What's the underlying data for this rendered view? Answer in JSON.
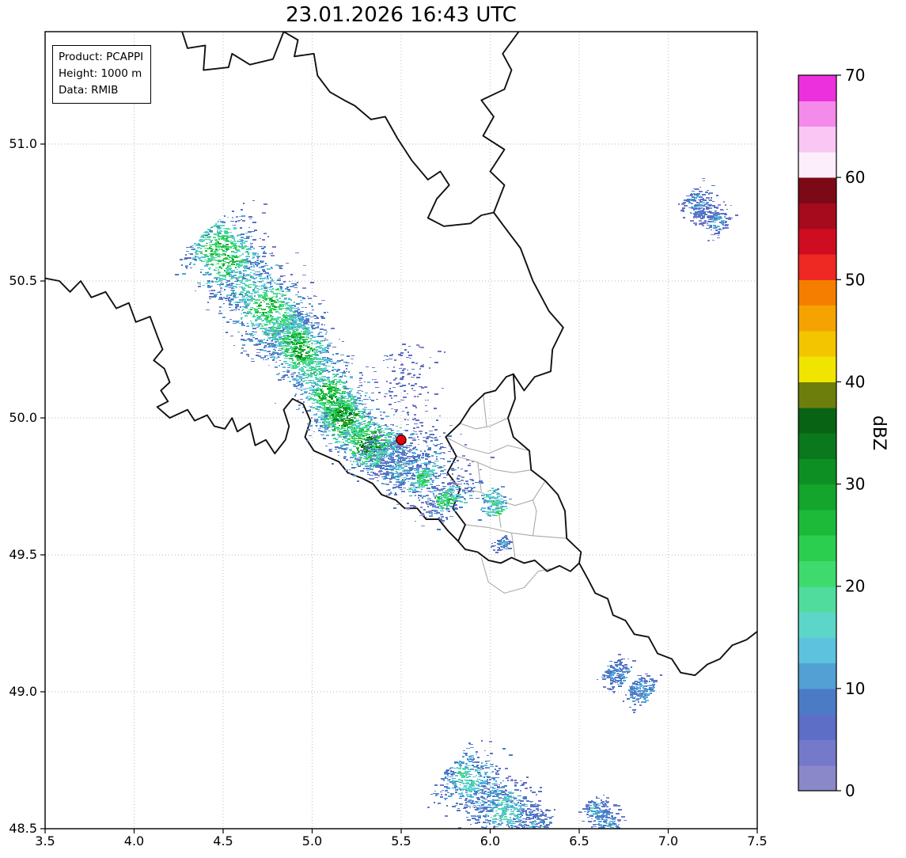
{
  "title": "23.01.2026 16:43 UTC",
  "info_box": {
    "lines": [
      "Product: PCAPPI",
      "Height: 1000 m",
      "Data: RMIB"
    ]
  },
  "axes": {
    "xlim": [
      3.5,
      7.5
    ],
    "ylim": [
      48.5,
      51.41
    ],
    "xticks": [
      "3.5",
      "4.0",
      "4.5",
      "5.0",
      "5.5",
      "6.0",
      "6.5",
      "7.0",
      "7.5"
    ],
    "yticks": [
      "48.5",
      "49.0",
      "49.5",
      "50.0",
      "50.5",
      "51.0"
    ],
    "grid": "dotted"
  },
  "colorbar": {
    "label": "dBZ",
    "vmin": 0,
    "vmax": 70,
    "step": 2.5,
    "ticks": [
      0,
      10,
      20,
      30,
      40,
      50,
      60,
      70
    ],
    "colors": [
      "#8a88c9",
      "#7479c9",
      "#5c6ec6",
      "#4b7bc4",
      "#52a0d4",
      "#5cc2de",
      "#5bd6c8",
      "#50dc9c",
      "#3eda6e",
      "#2bce4e",
      "#1cba38",
      "#13a52c",
      "#0e8f24",
      "#0a781c",
      "#086414",
      "#6e7e0c",
      "#f0e500",
      "#f3c500",
      "#f5a300",
      "#f57e00",
      "#ee2822",
      "#cf0d20",
      "#a50b1c",
      "#7c0a16",
      "#fdeefc",
      "#fac6f4",
      "#f48ae9",
      "#ec30dd"
    ]
  },
  "marker": {
    "name": "radar-site",
    "lon": 5.5,
    "lat": 49.92,
    "color": "#e8000b"
  },
  "chart_data": {
    "type": "heatmap",
    "title": "23.01.2026 16:43 UTC",
    "units": "dBZ",
    "value_range": [
      0,
      70
    ],
    "color_step_dbz": 2.5,
    "lon_range": [
      3.5,
      7.5
    ],
    "lat_range": [
      48.5,
      51.41
    ],
    "echo_clusters": [
      {
        "name": "band-upper",
        "p0": [
          4.42,
          50.66
        ],
        "p1": [
          4.88,
          50.3
        ],
        "sigma": 0.085,
        "n": 1500,
        "base": 5,
        "core": 20,
        "noise": 6,
        "max": 33
      },
      {
        "name": "band-mid",
        "p0": [
          4.84,
          50.34
        ],
        "p1": [
          5.16,
          50.02
        ],
        "sigma": 0.062,
        "n": 1300,
        "base": 6,
        "core": 23,
        "noise": 6,
        "max": 36
      },
      {
        "name": "band-lower",
        "p0": [
          5.12,
          50.04
        ],
        "p1": [
          5.38,
          49.86
        ],
        "sigma": 0.058,
        "n": 1000,
        "base": 8,
        "core": 26,
        "noise": 7,
        "max": 38
      },
      {
        "name": "band-tail",
        "p0": [
          5.3,
          49.9
        ],
        "p1": [
          5.52,
          49.78
        ],
        "sigma": 0.05,
        "n": 350,
        "base": 4,
        "core": 12,
        "noise": 5,
        "max": 26
      },
      {
        "name": "scatter-east",
        "p0": [
          5.44,
          49.92
        ],
        "p1": [
          5.82,
          49.7
        ],
        "sigma": 0.085,
        "n": 600,
        "base": 3,
        "core": 10,
        "noise": 5,
        "max": 24
      },
      {
        "name": "cell-a",
        "p0": [
          5.59,
          49.79
        ],
        "p1": [
          5.63,
          49.77
        ],
        "sigma": 0.03,
        "n": 120,
        "base": 14,
        "core": 10,
        "noise": 5,
        "max": 30
      },
      {
        "name": "cell-b",
        "p0": [
          5.72,
          49.72
        ],
        "p1": [
          5.76,
          49.69
        ],
        "sigma": 0.032,
        "n": 140,
        "base": 14,
        "core": 11,
        "noise": 5,
        "max": 31
      },
      {
        "name": "cell-border",
        "p0": [
          5.99,
          49.73
        ],
        "p1": [
          6.04,
          49.66
        ],
        "sigma": 0.03,
        "n": 130,
        "base": 10,
        "core": 10,
        "noise": 5,
        "max": 28
      },
      {
        "name": "speckle-north",
        "p0": [
          5.42,
          50.22
        ],
        "p1": [
          5.58,
          50.05
        ],
        "sigma": 0.09,
        "n": 130,
        "base": 2,
        "core": 4,
        "noise": 3,
        "max": 12
      },
      {
        "name": "patch-ne",
        "p0": [
          7.12,
          50.81
        ],
        "p1": [
          7.3,
          50.7
        ],
        "sigma": 0.035,
        "n": 300,
        "base": 4,
        "core": 7,
        "noise": 4,
        "max": 16
      },
      {
        "name": "patch-south",
        "p0": [
          5.8,
          48.72
        ],
        "p1": [
          6.16,
          48.52
        ],
        "sigma": 0.07,
        "n": 900,
        "base": 5,
        "core": 11,
        "noise": 5,
        "max": 22
      },
      {
        "name": "patch-south-2",
        "p0": [
          6.2,
          48.55
        ],
        "p1": [
          6.3,
          48.5
        ],
        "sigma": 0.04,
        "n": 150,
        "base": 4,
        "core": 7,
        "noise": 4,
        "max": 14
      },
      {
        "name": "patch-se",
        "p0": [
          6.56,
          48.6
        ],
        "p1": [
          6.68,
          48.5
        ],
        "sigma": 0.032,
        "n": 220,
        "base": 5,
        "core": 8,
        "noise": 4,
        "max": 16
      },
      {
        "name": "patch-east-a",
        "p0": [
          6.66,
          49.09
        ],
        "p1": [
          6.74,
          49.05
        ],
        "sigma": 0.035,
        "n": 160,
        "base": 5,
        "core": 7,
        "noise": 4,
        "max": 15
      },
      {
        "name": "patch-east-b",
        "p0": [
          6.8,
          49.03
        ],
        "p1": [
          6.88,
          48.99
        ],
        "sigma": 0.035,
        "n": 170,
        "base": 5,
        "core": 7,
        "noise": 4,
        "max": 15
      },
      {
        "name": "speck-lux",
        "p0": [
          6.05,
          49.56
        ],
        "p1": [
          6.08,
          49.53
        ],
        "sigma": 0.02,
        "n": 60,
        "base": 5,
        "core": 6,
        "noise": 3,
        "max": 14
      }
    ]
  },
  "map": {
    "country_borders": [
      [
        [
          3.5,
          50.51
        ],
        [
          3.58,
          50.5
        ],
        [
          3.64,
          50.46
        ],
        [
          3.7,
          50.5
        ],
        [
          3.76,
          50.44
        ],
        [
          3.84,
          50.46
        ],
        [
          3.9,
          50.4
        ],
        [
          3.97,
          50.42
        ],
        [
          4.01,
          50.35
        ],
        [
          4.09,
          50.37
        ],
        [
          4.13,
          50.3
        ],
        [
          4.16,
          50.25
        ],
        [
          4.11,
          50.21
        ],
        [
          4.17,
          50.18
        ],
        [
          4.2,
          50.13
        ],
        [
          4.15,
          50.1
        ],
        [
          4.19,
          50.06
        ],
        [
          4.13,
          50.04
        ],
        [
          4.2,
          50.0
        ],
        [
          4.3,
          50.03
        ],
        [
          4.34,
          49.99
        ],
        [
          4.41,
          50.01
        ],
        [
          4.45,
          49.97
        ],
        [
          4.51,
          49.96
        ],
        [
          4.55,
          50.0
        ],
        [
          4.58,
          49.95
        ],
        [
          4.65,
          49.98
        ],
        [
          4.68,
          49.9
        ],
        [
          4.74,
          49.92
        ],
        [
          4.79,
          49.87
        ],
        [
          4.85,
          49.92
        ],
        [
          4.87,
          49.97
        ],
        [
          4.84,
          50.03
        ],
        [
          4.89,
          50.07
        ],
        [
          4.95,
          50.05
        ],
        [
          4.99,
          49.99
        ],
        [
          4.96,
          49.93
        ],
        [
          5.01,
          49.88
        ],
        [
          5.08,
          49.86
        ],
        [
          5.15,
          49.84
        ],
        [
          5.2,
          49.8
        ],
        [
          5.28,
          49.78
        ],
        [
          5.34,
          49.76
        ],
        [
          5.39,
          49.72
        ],
        [
          5.47,
          49.7
        ],
        [
          5.52,
          49.67
        ],
        [
          5.59,
          49.67
        ],
        [
          5.64,
          49.63
        ],
        [
          5.71,
          49.63
        ],
        [
          5.76,
          49.59
        ],
        [
          5.82,
          49.55
        ],
        [
          5.86,
          49.52
        ],
        [
          5.93,
          49.51
        ],
        [
          5.99,
          49.48
        ],
        [
          6.06,
          49.47
        ],
        [
          6.12,
          49.49
        ],
        [
          6.19,
          49.47
        ],
        [
          6.25,
          49.48
        ],
        [
          6.32,
          49.44
        ],
        [
          6.39,
          49.46
        ],
        [
          6.45,
          49.44
        ],
        [
          6.5,
          49.47
        ],
        [
          6.55,
          49.41
        ],
        [
          6.59,
          49.36
        ],
        [
          6.66,
          49.34
        ],
        [
          6.69,
          49.28
        ],
        [
          6.76,
          49.26
        ],
        [
          6.81,
          49.21
        ],
        [
          6.89,
          49.2
        ],
        [
          6.94,
          49.14
        ],
        [
          7.02,
          49.12
        ],
        [
          7.07,
          49.07
        ],
        [
          7.15,
          49.06
        ],
        [
          7.22,
          49.1
        ],
        [
          7.29,
          49.12
        ],
        [
          7.36,
          49.17
        ],
        [
          7.44,
          49.19
        ],
        [
          7.5,
          49.22
        ]
      ],
      [
        [
          4.27,
          51.41
        ],
        [
          4.3,
          51.35
        ],
        [
          4.4,
          51.36
        ],
        [
          4.39,
          51.27
        ],
        [
          4.53,
          51.28
        ],
        [
          4.55,
          51.33
        ],
        [
          4.65,
          51.29
        ],
        [
          4.78,
          51.31
        ],
        [
          4.84,
          51.41
        ],
        [
          4.92,
          51.38
        ],
        [
          4.9,
          51.32
        ],
        [
          5.01,
          51.33
        ],
        [
          5.03,
          51.25
        ],
        [
          5.1,
          51.19
        ],
        [
          5.18,
          51.16
        ],
        [
          5.24,
          51.14
        ],
        [
          5.33,
          51.09
        ],
        [
          5.41,
          51.1
        ],
        [
          5.48,
          51.02
        ],
        [
          5.56,
          50.94
        ],
        [
          5.65,
          50.87
        ],
        [
          5.72,
          50.9
        ],
        [
          5.77,
          50.85
        ],
        [
          5.7,
          50.8
        ],
        [
          5.65,
          50.73
        ],
        [
          5.74,
          50.7
        ],
        [
          5.89,
          50.71
        ],
        [
          5.95,
          50.74
        ],
        [
          6.02,
          50.75
        ]
      ],
      [
        [
          6.02,
          50.75
        ],
        [
          6.08,
          50.85
        ],
        [
          6.0,
          50.9
        ],
        [
          6.08,
          50.98
        ],
        [
          5.96,
          51.03
        ],
        [
          6.02,
          51.1
        ],
        [
          5.95,
          51.16
        ],
        [
          6.08,
          51.2
        ],
        [
          6.12,
          51.27
        ],
        [
          6.07,
          51.33
        ],
        [
          6.16,
          51.41
        ]
      ],
      [
        [
          6.02,
          50.75
        ],
        [
          6.1,
          50.68
        ],
        [
          6.17,
          50.62
        ],
        [
          6.24,
          50.5
        ],
        [
          6.33,
          50.39
        ],
        [
          6.41,
          50.33
        ],
        [
          6.35,
          50.25
        ],
        [
          6.34,
          50.17
        ],
        [
          6.25,
          50.15
        ],
        [
          6.19,
          50.1
        ],
        [
          6.13,
          50.16
        ],
        [
          6.14,
          50.07
        ],
        [
          6.1,
          50.0
        ],
        [
          6.13,
          49.93
        ],
        [
          6.22,
          49.88
        ],
        [
          6.23,
          49.81
        ],
        [
          6.31,
          49.77
        ],
        [
          6.38,
          49.72
        ],
        [
          6.42,
          49.66
        ],
        [
          6.43,
          49.56
        ],
        [
          6.51,
          49.51
        ],
        [
          6.5,
          49.47
        ]
      ],
      [
        [
          5.82,
          49.55
        ],
        [
          5.86,
          49.61
        ],
        [
          5.79,
          49.67
        ],
        [
          5.83,
          49.74
        ],
        [
          5.76,
          49.8
        ],
        [
          5.81,
          49.86
        ],
        [
          5.75,
          49.93
        ],
        [
          5.83,
          49.98
        ],
        [
          5.89,
          50.04
        ],
        [
          5.97,
          50.09
        ],
        [
          6.03,
          50.1
        ],
        [
          6.09,
          50.15
        ],
        [
          6.13,
          50.16
        ]
      ]
    ],
    "admin_borders": [
      [
        [
          5.83,
          49.98
        ],
        [
          5.92,
          49.96
        ],
        [
          6.0,
          49.97
        ],
        [
          6.1,
          50.0
        ]
      ],
      [
        [
          5.96,
          50.09
        ],
        [
          5.98,
          49.97
        ]
      ],
      [
        [
          5.75,
          49.93
        ],
        [
          5.87,
          49.89
        ],
        [
          5.99,
          49.87
        ],
        [
          6.1,
          49.9
        ],
        [
          6.22,
          49.88
        ]
      ],
      [
        [
          5.81,
          49.86
        ],
        [
          5.92,
          49.84
        ],
        [
          6.03,
          49.81
        ],
        [
          6.13,
          49.8
        ],
        [
          6.23,
          49.81
        ]
      ],
      [
        [
          5.93,
          49.84
        ],
        [
          5.95,
          49.73
        ]
      ],
      [
        [
          5.83,
          49.74
        ],
        [
          5.94,
          49.73
        ],
        [
          6.04,
          49.7
        ],
        [
          6.14,
          49.68
        ],
        [
          6.24,
          49.7
        ],
        [
          6.31,
          49.77
        ]
      ],
      [
        [
          6.04,
          49.7
        ],
        [
          6.06,
          49.6
        ]
      ],
      [
        [
          5.86,
          49.61
        ],
        [
          5.99,
          49.6
        ],
        [
          6.12,
          49.58
        ],
        [
          6.24,
          49.57
        ],
        [
          6.43,
          49.56
        ]
      ],
      [
        [
          6.24,
          49.57
        ],
        [
          6.26,
          49.66
        ],
        [
          6.24,
          49.7
        ]
      ],
      [
        [
          6.12,
          49.58
        ],
        [
          6.14,
          49.49
        ]
      ],
      [
        [
          5.95,
          49.49
        ],
        [
          5.99,
          49.4
        ],
        [
          6.08,
          49.36
        ],
        [
          6.19,
          49.38
        ],
        [
          6.27,
          49.44
        ],
        [
          6.34,
          49.45
        ]
      ]
    ]
  }
}
